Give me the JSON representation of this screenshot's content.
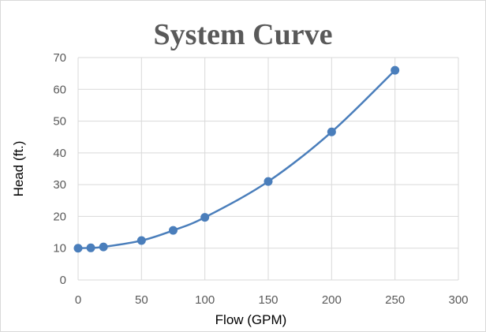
{
  "chart_data": {
    "type": "scatter",
    "title": "System Curve",
    "xlabel": "Flow (GPM)",
    "ylabel": "Head (ft.)",
    "xlim": [
      0,
      300
    ],
    "ylim": [
      0,
      70
    ],
    "x_ticks": [
      0,
      50,
      100,
      150,
      200,
      250,
      300
    ],
    "y_ticks": [
      0,
      10,
      20,
      30,
      40,
      50,
      60,
      70
    ],
    "grid": true,
    "legend": "none",
    "smooth_line": true,
    "series": [
      {
        "color": "#4a7ebb",
        "x": [
          0,
          10,
          20,
          50,
          75,
          100,
          150,
          200,
          250
        ],
        "y": [
          10,
          10.1,
          10.4,
          12.4,
          15.6,
          19.7,
          31,
          46.6,
          66
        ]
      }
    ]
  }
}
